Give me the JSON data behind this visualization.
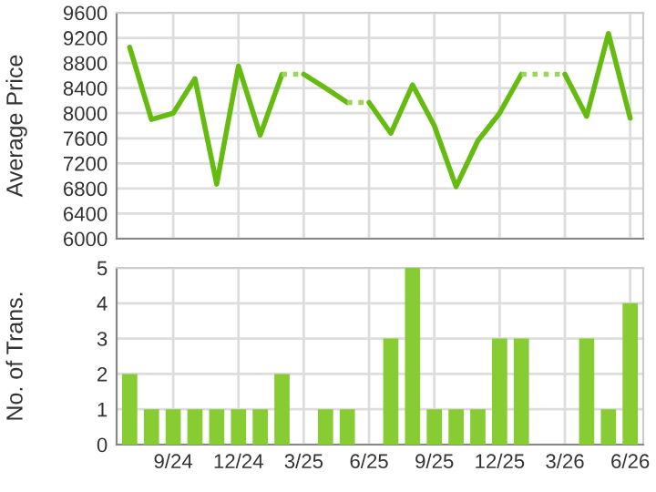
{
  "chart_data": [
    {
      "type": "line",
      "ylabel": "Average Price",
      "categories": [
        null,
        null,
        null,
        null,
        null,
        null,
        null,
        null,
        null,
        null,
        null,
        null,
        null,
        null,
        null,
        null,
        null,
        null,
        null,
        null,
        null,
        null,
        null,
        null
      ],
      "tick_labels": "y",
      "ylim": [
        6000,
        9600
      ],
      "yticks": [
        6000,
        6400,
        6800,
        7200,
        7600,
        8000,
        8400,
        8800,
        9200,
        9600
      ],
      "grid": true,
      "series": [
        {
          "color": "#66bb11",
          "values": [
            9050,
            7900,
            8000,
            8550,
            6870,
            8750,
            7650,
            8620,
            null,
            null,
            null,
            8170,
            7680,
            8450,
            7800,
            6830,
            7560,
            8000,
            8620,
            null,
            null,
            null,
            null,
            null
          ]
        },
        {
          "color": "#66bb11",
          "values": [
            null,
            null,
            null,
            null,
            null,
            null,
            null,
            null,
            8620,
            8400,
            8170,
            null,
            null,
            null,
            null,
            null,
            null,
            null,
            null,
            null,
            8620,
            7950,
            9270,
            7920
          ]
        },
        {
          "color": "#9ad65a",
          "line_style": "dotted",
          "values": [
            null,
            null,
            null,
            null,
            null,
            null,
            null,
            8620,
            8620,
            null,
            8170,
            8170,
            null,
            null,
            null,
            null,
            null,
            null,
            8620,
            8620,
            8620,
            null,
            null,
            null
          ]
        }
      ]
    },
    {
      "type": "bar",
      "ylabel": "No. of Trans.",
      "categories": [
        null,
        null,
        "9/24",
        null,
        null,
        "12/24",
        null,
        null,
        "3/25",
        null,
        null,
        "6/25",
        null,
        null,
        "9/25",
        null,
        null,
        "12/25",
        null,
        null,
        "3/26",
        null,
        null,
        "6/26"
      ],
      "ylim": [
        0,
        5
      ],
      "yticks": [
        0,
        1,
        2,
        3,
        4,
        5
      ],
      "grid": true,
      "series": [
        {
          "color": "#88cc33",
          "values": [
            2,
            1,
            1,
            1,
            1,
            1,
            1,
            2,
            0,
            1,
            1,
            0,
            3,
            5,
            1,
            1,
            1,
            3,
            3,
            0,
            0,
            3,
            1,
            4
          ]
        }
      ]
    }
  ]
}
